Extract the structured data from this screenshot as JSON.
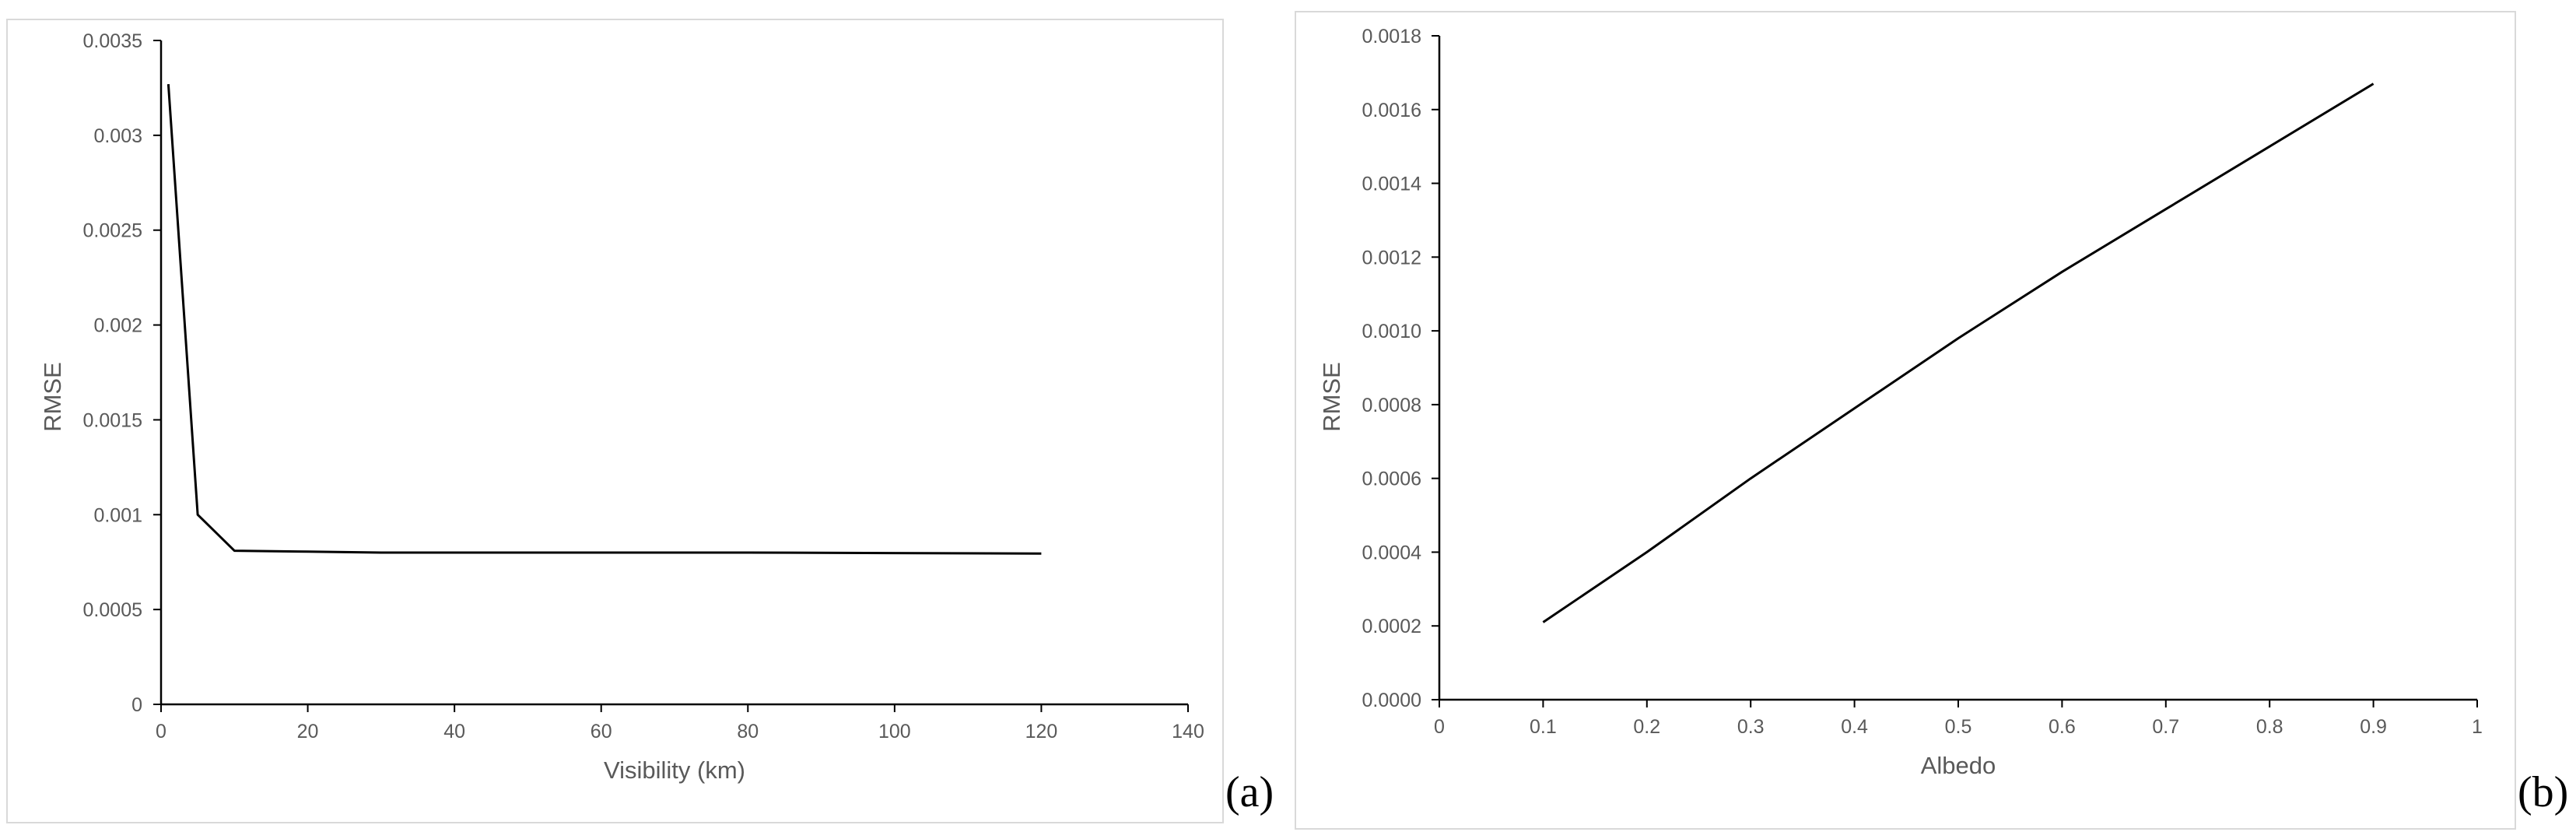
{
  "chart_data": [
    {
      "type": "line",
      "panel_label": "(a)",
      "xlabel": "Visibility (km)",
      "ylabel": "RMSE",
      "xlim": [
        0,
        140
      ],
      "ylim": [
        0,
        0.0035
      ],
      "xticks": [
        "0",
        "20",
        "40",
        "60",
        "80",
        "100",
        "120",
        "140"
      ],
      "yticks": [
        "0",
        "0.0005",
        "0.001",
        "0.0015",
        "0.002",
        "0.0025",
        "0.003",
        "0.0035"
      ],
      "grid": false,
      "legend": "none",
      "line_color": "#000000",
      "series": [
        {
          "x": [
            1,
            5,
            10,
            20,
            30,
            50,
            80,
            120
          ],
          "y": [
            0.00327,
            0.001,
            0.00081,
            0.000805,
            0.0008,
            0.0008,
            0.0008,
            0.000795
          ]
        }
      ]
    },
    {
      "type": "line",
      "panel_label": "(b)",
      "xlabel": "Albedo",
      "ylabel": "RMSE",
      "xlim": [
        0,
        1
      ],
      "ylim": [
        0,
        0.0018
      ],
      "xticks": [
        "0",
        "0.1",
        "0.2",
        "0.3",
        "0.4",
        "0.5",
        "0.6",
        "0.7",
        "0.8",
        "0.9",
        "1"
      ],
      "yticks": [
        "0.0000",
        "0.0002",
        "0.0004",
        "0.0006",
        "0.0008",
        "0.0010",
        "0.0012",
        "0.0014",
        "0.0016",
        "0.0018"
      ],
      "grid": false,
      "legend": "none",
      "line_color": "#000000",
      "series": [
        {
          "x": [
            0.1,
            0.2,
            0.3,
            0.4,
            0.5,
            0.6,
            0.7,
            0.8,
            0.9
          ],
          "y": [
            0.00021,
            0.0004,
            0.0006,
            0.00079,
            0.00098,
            0.00116,
            0.00133,
            0.0015,
            0.00167
          ]
        }
      ]
    }
  ]
}
